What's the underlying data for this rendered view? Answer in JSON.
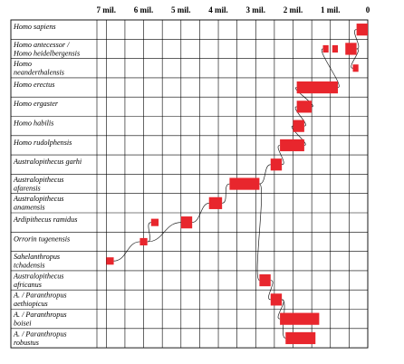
{
  "chart_data": {
    "type": "range-bar",
    "title": "",
    "xlabel": "",
    "ylabel": "",
    "x_unit_label": "mil.",
    "x_ticks": [
      {
        "value": 7,
        "label": "7 mil."
      },
      {
        "value": 6,
        "label": "6 mil."
      },
      {
        "value": 5,
        "label": "5 mil."
      },
      {
        "value": 4,
        "label": "4 mil."
      },
      {
        "value": 3,
        "label": "3 mil."
      },
      {
        "value": 2,
        "label": "2 mil."
      },
      {
        "value": 1,
        "label": "1 mil."
      },
      {
        "value": 0,
        "label": "0"
      }
    ],
    "xlim": [
      7.25,
      0
    ],
    "grid": true,
    "bar_color": "#e8262d",
    "species": [
      {
        "label_lines": [
          "Homo sapiens"
        ],
        "ranges": [
          [
            0.3,
            0.0
          ]
        ]
      },
      {
        "label_lines": [
          "Homo antecessor /",
          "Homo heidelbergensis"
        ],
        "ranges": [
          [
            1.2,
            1.05
          ],
          [
            0.95,
            0.8
          ],
          [
            0.6,
            0.3
          ]
        ]
      },
      {
        "label_lines": [
          "Homo",
          "neanderthalensis"
        ],
        "ranges": [
          [
            0.4,
            0.25
          ]
        ]
      },
      {
        "label_lines": [
          "Homo erectus"
        ],
        "ranges": [
          [
            1.9,
            0.8
          ]
        ]
      },
      {
        "label_lines": [
          "Homo ergaster"
        ],
        "ranges": [
          [
            1.9,
            1.5
          ]
        ]
      },
      {
        "label_lines": [
          "Homo habilis"
        ],
        "ranges": [
          [
            2.0,
            1.7
          ]
        ]
      },
      {
        "label_lines": [
          "Homo rudolphensis"
        ],
        "ranges": [
          [
            2.35,
            1.7
          ]
        ]
      },
      {
        "label_lines": [
          "Australopithecus garhi"
        ],
        "ranges": [
          [
            2.6,
            2.3
          ]
        ]
      },
      {
        "label_lines": [
          "Australopithecus",
          "afarensis"
        ],
        "ranges": [
          [
            3.7,
            2.9
          ]
        ]
      },
      {
        "label_lines": [
          "Australopithecus",
          "anamensis"
        ],
        "ranges": [
          [
            4.25,
            3.9
          ]
        ]
      },
      {
        "label_lines": [
          "Ardipithecus ramidus"
        ],
        "ranges": [
          [
            5.0,
            4.7
          ],
          [
            5.8,
            5.6
          ]
        ]
      },
      {
        "label_lines": [
          "Orrorin tugenensis"
        ],
        "ranges": [
          [
            6.1,
            5.9
          ]
        ]
      },
      {
        "label_lines": [
          "Sahelanthropus",
          "tchadensis"
        ],
        "ranges": [
          [
            7.0,
            6.8
          ]
        ]
      },
      {
        "label_lines": [
          "Australopithecus",
          "africanus"
        ],
        "ranges": [
          [
            2.9,
            2.6
          ]
        ]
      },
      {
        "label_lines": [
          "A. / Paranthropus",
          "aethiopicus"
        ],
        "ranges": [
          [
            2.6,
            2.3
          ]
        ]
      },
      {
        "label_lines": [
          "A. / Paranthropus",
          "boisei"
        ],
        "ranges": [
          [
            2.35,
            1.3
          ]
        ]
      },
      {
        "label_lines": [
          "A. / Paranthropus",
          "robustus"
        ],
        "ranges": [
          [
            2.2,
            1.4
          ]
        ]
      }
    ]
  }
}
